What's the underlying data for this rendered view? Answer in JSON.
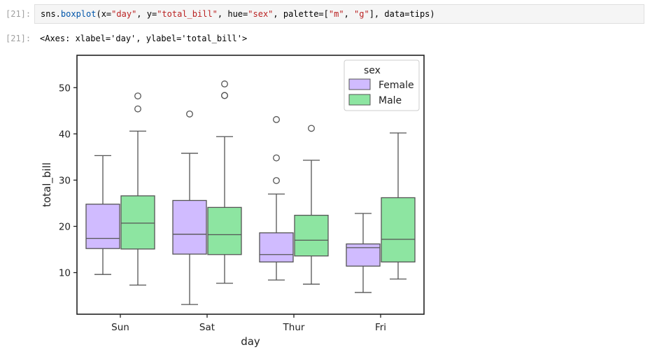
{
  "cell_in": {
    "prompt": "[21]:",
    "code": {
      "t0": "sns.",
      "t1": "boxplot",
      "t2": "(x=",
      "t3": "\"day\"",
      "t4": ", y=",
      "t5": "\"total_bill\"",
      "t6": ", hue=",
      "t7": "\"sex\"",
      "t8": ", palette=[",
      "t9": "\"m\"",
      "t10": ", ",
      "t11": "\"g\"",
      "t12": "], data=tips)"
    }
  },
  "cell_out": {
    "prompt": "[21]:",
    "text": "<Axes: xlabel='day', ylabel='total_bill'>"
  },
  "colors": {
    "female": "#d0bbff",
    "male": "#8de5a1",
    "line": "#555555",
    "axes": "#222222"
  },
  "chart_data": {
    "type": "boxplot",
    "xlabel": "day",
    "ylabel": "total_bill",
    "categories": [
      "Sun",
      "Sat",
      "Thur",
      "Fri"
    ],
    "ylim": [
      1,
      57
    ],
    "yticks": [
      10,
      20,
      30,
      40,
      50
    ],
    "grid": false,
    "legend": {
      "title": "sex",
      "placement": "top-right",
      "entries": [
        "Female",
        "Male"
      ]
    },
    "series": [
      {
        "name": "Female",
        "color": "#d0bbff",
        "boxes": [
          {
            "whislo": 9.6,
            "q1": 15.2,
            "med": 17.4,
            "q3": 24.8,
            "whishi": 35.3,
            "fliers": []
          },
          {
            "whislo": 3.1,
            "q1": 14.0,
            "med": 18.3,
            "q3": 25.6,
            "whishi": 35.8,
            "fliers": [
              44.3
            ]
          },
          {
            "whislo": 8.4,
            "q1": 12.3,
            "med": 13.9,
            "q3": 18.6,
            "whishi": 27.0,
            "fliers": [
              29.9,
              34.8,
              43.1
            ]
          },
          {
            "whislo": 5.7,
            "q1": 11.4,
            "med": 15.4,
            "q3": 16.2,
            "whishi": 22.8,
            "fliers": []
          }
        ]
      },
      {
        "name": "Male",
        "color": "#8de5a1",
        "boxes": [
          {
            "whislo": 7.3,
            "q1": 15.1,
            "med": 20.7,
            "q3": 26.6,
            "whishi": 40.6,
            "fliers": [
              45.4,
              48.2
            ]
          },
          {
            "whislo": 7.7,
            "q1": 13.9,
            "med": 18.2,
            "q3": 24.1,
            "whishi": 39.4,
            "fliers": [
              48.3,
              48.3,
              50.8
            ]
          },
          {
            "whislo": 7.5,
            "q1": 13.6,
            "med": 17.0,
            "q3": 22.4,
            "whishi": 34.3,
            "fliers": [
              41.2
            ]
          },
          {
            "whislo": 8.6,
            "q1": 12.3,
            "med": 17.2,
            "q3": 26.2,
            "whishi": 40.2,
            "fliers": []
          }
        ]
      }
    ]
  }
}
